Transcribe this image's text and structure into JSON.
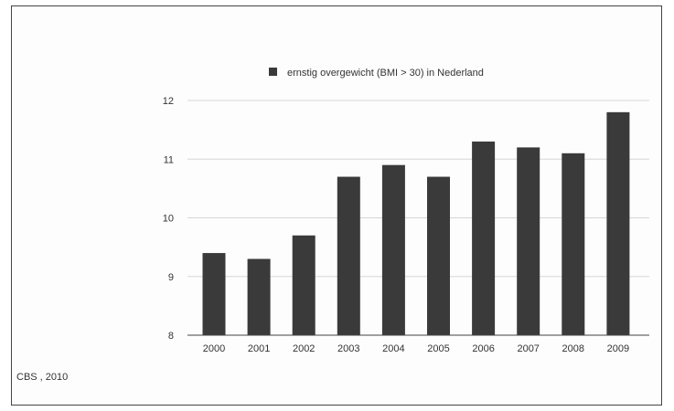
{
  "chart_data": {
    "type": "bar",
    "categories": [
      "2000",
      "2001",
      "2002",
      "2003",
      "2004",
      "2005",
      "2006",
      "2007",
      "2008",
      "2009"
    ],
    "series": [
      {
        "name": "ernstig overgewicht (BMI > 30) in Nederland",
        "values": [
          9.4,
          9.3,
          9.7,
          10.7,
          10.9,
          10.7,
          11.3,
          11.2,
          11.1,
          11.8
        ]
      }
    ],
    "ylim": [
      8,
      12
    ],
    "yticks": [
      8,
      9,
      10,
      11,
      12
    ],
    "title": "",
    "xlabel": "",
    "ylabel": "",
    "grid": true,
    "legend_position": "top-center",
    "bar_color": "#3a3a3a"
  },
  "source_note": "CBS , 2010"
}
